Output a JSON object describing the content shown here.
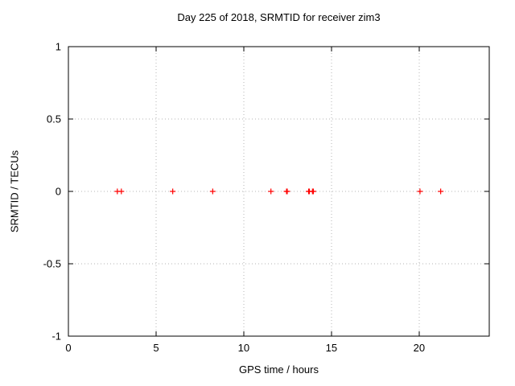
{
  "chart_data": {
    "type": "scatter",
    "title": "Day 225 of 2018, SRMTID for receiver zim3",
    "xlabel": "GPS time / hours",
    "ylabel": "SRMTID / TECUs",
    "xlim": [
      0,
      24
    ],
    "ylim": [
      -1,
      1
    ],
    "xticks": [
      0,
      5,
      10,
      15,
      20
    ],
    "yticks": [
      -1,
      -0.5,
      0,
      0.5,
      1
    ],
    "grid_x": [
      5,
      10,
      15,
      20
    ],
    "grid_y": [
      -0.5,
      0,
      0.5
    ],
    "grid_on": true,
    "legend": "none",
    "marker": "plus",
    "marker_color": "#ff0000",
    "border_color": "#000000",
    "grid_color": "#b4b4b4",
    "background_color": "#ffffff",
    "points": [
      {
        "x": 2.79,
        "y": 0
      },
      {
        "x": 3.02,
        "y": 0
      },
      {
        "x": 5.95,
        "y": 0
      },
      {
        "x": 8.23,
        "y": 0
      },
      {
        "x": 11.55,
        "y": 0
      },
      {
        "x": 12.44,
        "y": 0
      },
      {
        "x": 12.48,
        "y": 0
      },
      {
        "x": 13.7,
        "y": 0
      },
      {
        "x": 13.74,
        "y": 0
      },
      {
        "x": 13.92,
        "y": 0
      },
      {
        "x": 13.97,
        "y": 0
      },
      {
        "x": 20.05,
        "y": 0
      },
      {
        "x": 21.23,
        "y": 0
      }
    ]
  }
}
